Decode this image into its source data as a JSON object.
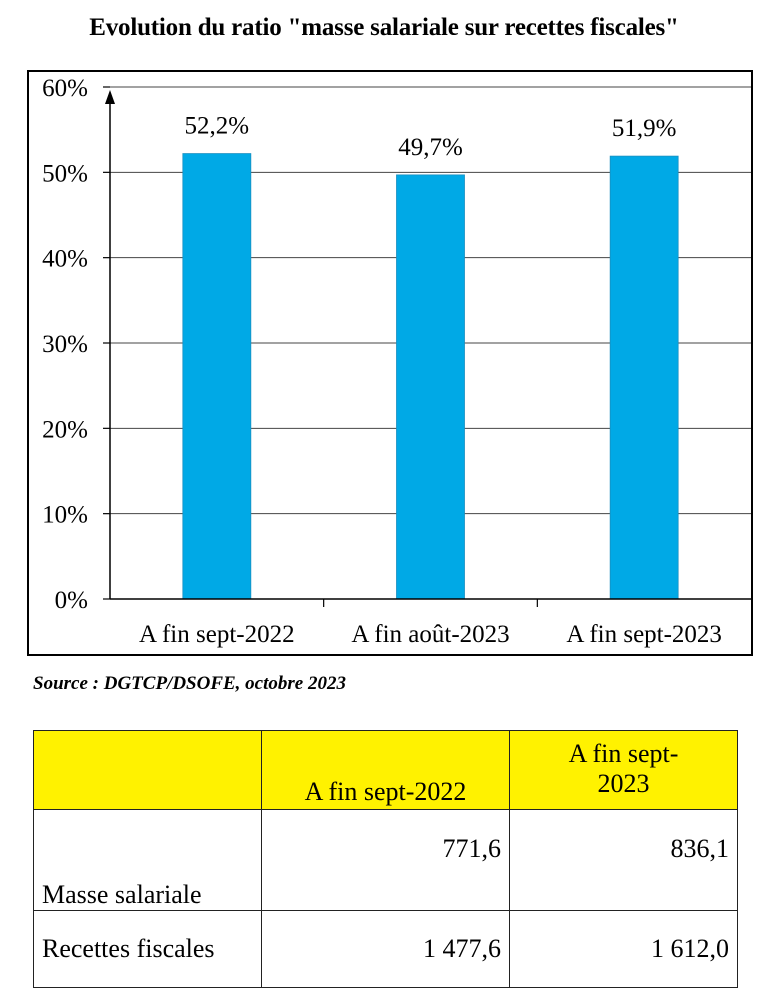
{
  "chart_data": {
    "type": "bar",
    "title": "Evolution du ratio \"masse salariale sur recettes fiscales\"",
    "categories": [
      "A fin sept-2022",
      "A fin août-2023",
      "A fin sept-2023"
    ],
    "values": [
      52.2,
      49.7,
      51.9
    ],
    "value_labels": [
      "52,2%",
      "49,7%",
      "51,9%"
    ],
    "ylim": [
      0,
      60
    ],
    "yticks": [
      0,
      10,
      20,
      30,
      40,
      50,
      60
    ],
    "ytick_labels": [
      "0%",
      "10%",
      "20%",
      "30%",
      "40%",
      "50%",
      "60%"
    ],
    "grid": true,
    "bar_color": "#00a9e6"
  },
  "source": "Source : DGTCP/DSOFE, octobre 2023",
  "table": {
    "header": [
      "",
      "A fin sept-2022",
      "A fin sept-\n2023"
    ],
    "header_color": "#fff200",
    "rows": [
      {
        "label": "Masse salariale",
        "values": [
          "771,6",
          "836,1"
        ]
      },
      {
        "label": "Recettes fiscales",
        "values": [
          "1 477,6",
          "1 612,0"
        ]
      }
    ]
  }
}
